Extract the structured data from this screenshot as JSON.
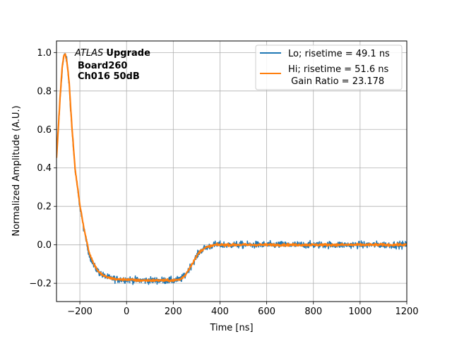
{
  "chart_data": {
    "type": "line",
    "xlabel": "Time [ns]",
    "ylabel": "Normalized Amplitude (A.U.)",
    "xlim": [
      -300,
      1200
    ],
    "ylim": [
      -0.295,
      1.06
    ],
    "grid": true,
    "x_ticks": [
      -200,
      0,
      200,
      400,
      600,
      800,
      1000,
      1200
    ],
    "x_tick_labels": [
      "−200",
      "0",
      "200",
      "400",
      "600",
      "800",
      "1000",
      "1200"
    ],
    "y_ticks": [
      -0.2,
      0.0,
      0.2,
      0.4,
      0.6,
      0.8,
      1.0
    ],
    "y_tick_labels": [
      "−0.2",
      "0.0",
      "0.2",
      "0.4",
      "0.6",
      "0.8",
      "1.0"
    ],
    "annotation": {
      "atlas": "ATLAS",
      "upgrade": "Upgrade",
      "board": "Board260",
      "channel": "Ch016 50dB"
    },
    "legend_position": "top-right",
    "legend": {
      "lo": "Lo; risetime = 49.1 ns",
      "hi": "Hi; risetime = 51.6 ns",
      "gain": " Gain Ratio = 23.178"
    },
    "series": [
      {
        "name": "Lo",
        "color": "#1f77b4",
        "noise": 0.018,
        "x": [
          -300,
          -285,
          -275,
          -268,
          -262,
          -255,
          -245,
          -235,
          -220,
          -200,
          -180,
          -160,
          -140,
          -120,
          -100,
          -80,
          -60,
          -40,
          -20,
          0,
          50,
          100,
          150,
          200,
          230,
          250,
          270,
          290,
          310,
          330,
          350,
          380,
          400,
          450,
          500,
          600,
          800,
          1000,
          1200
        ],
        "y": [
          0.45,
          0.75,
          0.92,
          0.98,
          0.99,
          0.95,
          0.82,
          0.62,
          0.38,
          0.2,
          0.06,
          -0.05,
          -0.11,
          -0.14,
          -0.16,
          -0.17,
          -0.175,
          -0.18,
          -0.18,
          -0.18,
          -0.185,
          -0.185,
          -0.185,
          -0.185,
          -0.18,
          -0.16,
          -0.12,
          -0.08,
          -0.04,
          -0.02,
          -0.01,
          0.0,
          0.0,
          0.0,
          0.0,
          0.0,
          0.0,
          0.0,
          0.0
        ]
      },
      {
        "name": "Hi",
        "color": "#ff7f0e",
        "noise": 0.006,
        "x": [
          -300,
          -285,
          -275,
          -268,
          -262,
          -255,
          -245,
          -235,
          -220,
          -200,
          -180,
          -160,
          -140,
          -120,
          -100,
          -80,
          -60,
          -40,
          -20,
          0,
          50,
          100,
          150,
          200,
          230,
          250,
          270,
          290,
          310,
          330,
          350,
          380,
          400,
          450,
          500,
          600,
          800,
          1000,
          1200
        ],
        "y": [
          0.45,
          0.76,
          0.93,
          0.99,
          0.99,
          0.95,
          0.83,
          0.63,
          0.39,
          0.21,
          0.07,
          -0.04,
          -0.1,
          -0.14,
          -0.16,
          -0.17,
          -0.175,
          -0.18,
          -0.18,
          -0.18,
          -0.185,
          -0.185,
          -0.185,
          -0.185,
          -0.18,
          -0.16,
          -0.12,
          -0.08,
          -0.04,
          -0.02,
          -0.01,
          0.0,
          0.0,
          0.0,
          0.0,
          0.0,
          0.0,
          0.0,
          0.0
        ]
      }
    ]
  }
}
